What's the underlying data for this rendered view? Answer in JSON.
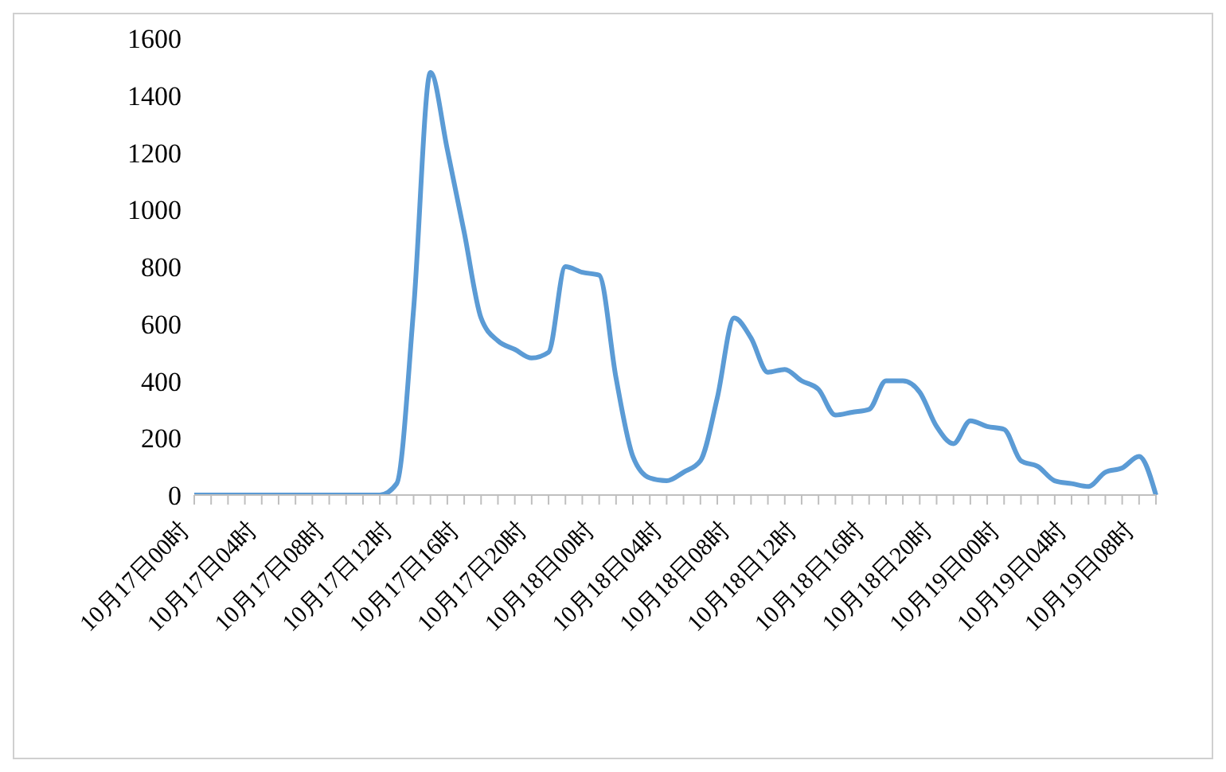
{
  "chart_data": {
    "type": "line",
    "categories": [
      "10月17日00时",
      null,
      null,
      null,
      "10月17日04时",
      null,
      null,
      null,
      "10月17日08时",
      null,
      null,
      null,
      "10月17日12时",
      null,
      null,
      null,
      "10月17日16时",
      null,
      null,
      null,
      "10月17日20时",
      null,
      null,
      null,
      "10月18日00时",
      null,
      null,
      null,
      "10月18日04时",
      null,
      null,
      null,
      "10月18日08时",
      null,
      null,
      null,
      "10月18日12时",
      null,
      null,
      null,
      "10月18日16时",
      null,
      null,
      null,
      "10月18日20时",
      null,
      null,
      null,
      "10月19日00时",
      null,
      null,
      null,
      "10月19日04时",
      null,
      null,
      null,
      "10月19日08时",
      null
    ],
    "series": [
      {
        "color": "#5b9bd5",
        "values": [
          0,
          0,
          0,
          0,
          0,
          0,
          0,
          0,
          0,
          0,
          0,
          0,
          40,
          650,
          1480,
          1210,
          920,
          620,
          540,
          510,
          480,
          500,
          800,
          780,
          770,
          410,
          135,
          60,
          50,
          80,
          120,
          340,
          620,
          550,
          430,
          440,
          400,
          370,
          280,
          290,
          300,
          400,
          400,
          360,
          240,
          180,
          260,
          240,
          230,
          120,
          100,
          50,
          40,
          30,
          80,
          95,
          135,
          0
        ]
      }
    ],
    "ylim": [
      0,
      1600
    ],
    "yticks": [
      0,
      200,
      400,
      600,
      800,
      1000,
      1200,
      1400,
      1600
    ],
    "grid": false,
    "legend": false,
    "marker": "none",
    "line_style": "solid"
  }
}
